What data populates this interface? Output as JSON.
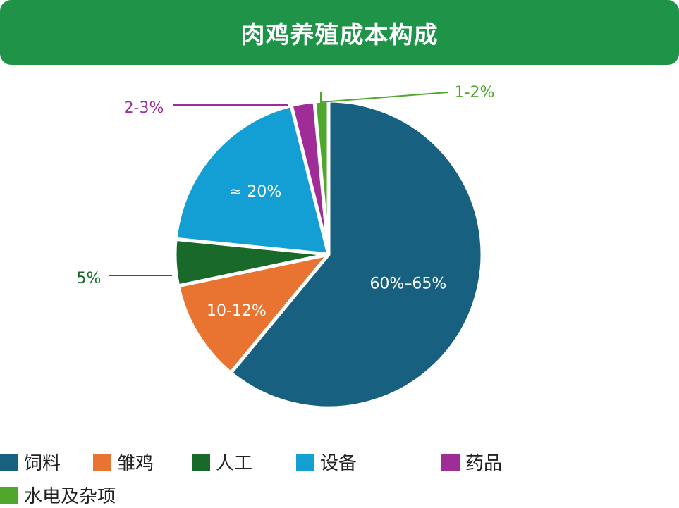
{
  "chart_data": {
    "type": "pie",
    "title": "肉鸡养殖成本构成",
    "slices": [
      {
        "name": "饲料",
        "value": 62.5,
        "label": "60%–65%",
        "color": "#17607f",
        "label_inside": true
      },
      {
        "name": "雏鸡",
        "value": 11,
        "label": "10-12%",
        "color": "#e97432",
        "label_inside": true
      },
      {
        "name": "人工",
        "value": 5,
        "label": "5%",
        "color": "#18692a",
        "label_inside": false
      },
      {
        "name": "设备",
        "value": 20,
        "label": "≈ 20%",
        "color": "#149fd4",
        "label_inside": true
      },
      {
        "name": "药品",
        "value": 2.5,
        "label": "2-3%",
        "color": "#a02c97",
        "label_inside": false
      },
      {
        "name": "水电及杂项",
        "value": 1.5,
        "label": "1-2%",
        "color": "#4fa82c",
        "label_inside": false
      }
    ],
    "start": "12 o'clock",
    "direction": "clockwise",
    "legend_placement": "bottom"
  }
}
